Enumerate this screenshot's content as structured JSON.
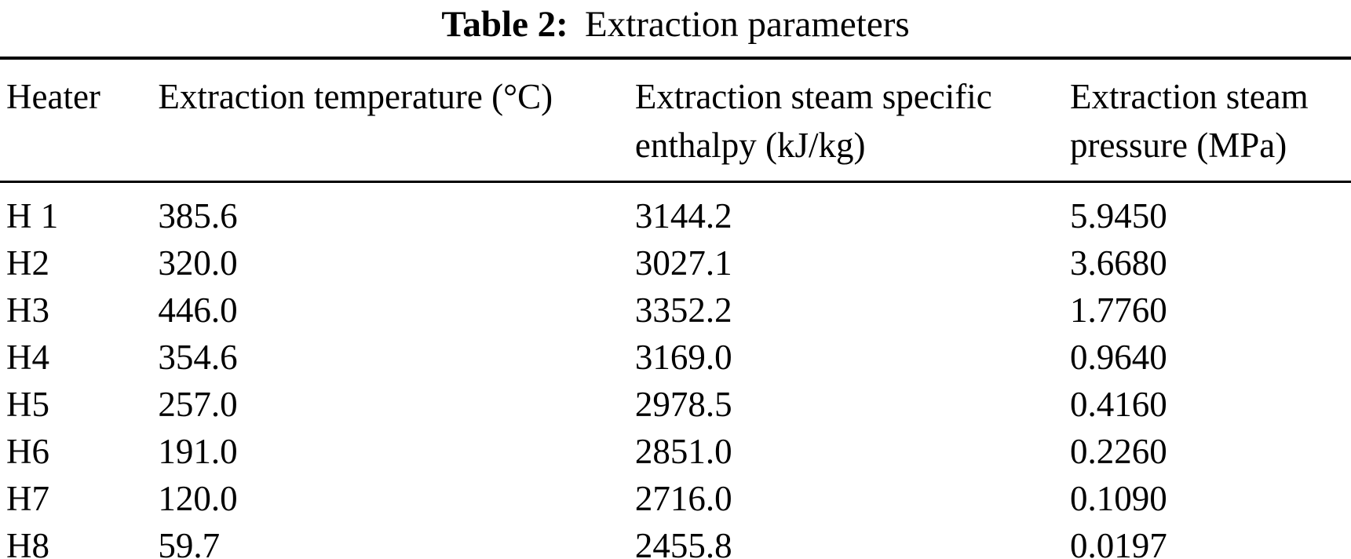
{
  "title": {
    "label": "Table 2:",
    "caption": "Extraction parameters"
  },
  "table": {
    "columns": [
      "Heater",
      "Extraction temperature (°C)",
      "Extraction steam specific enthalpy (kJ/kg)",
      "Extraction steam pressure (MPa)"
    ],
    "rows": [
      [
        "H 1",
        "385.6",
        "3144.2",
        "5.9450"
      ],
      [
        "H2",
        "320.0",
        "3027.1",
        "3.6680"
      ],
      [
        "H3",
        "446.0",
        "3352.2",
        "1.7760"
      ],
      [
        "H4",
        "354.6",
        "3169.0",
        "0.9640"
      ],
      [
        "H5",
        "257.0",
        "2978.5",
        "0.4160"
      ],
      [
        "H6",
        "191.0",
        "2851.0",
        "0.2260"
      ],
      [
        "H7",
        "120.0",
        "2716.0",
        "0.1090"
      ],
      [
        "H8",
        "59.7",
        "2455.8",
        "0.0197"
      ]
    ]
  },
  "colors": {
    "text": "#000000",
    "background": "#ffffff",
    "rule": "#000000"
  }
}
